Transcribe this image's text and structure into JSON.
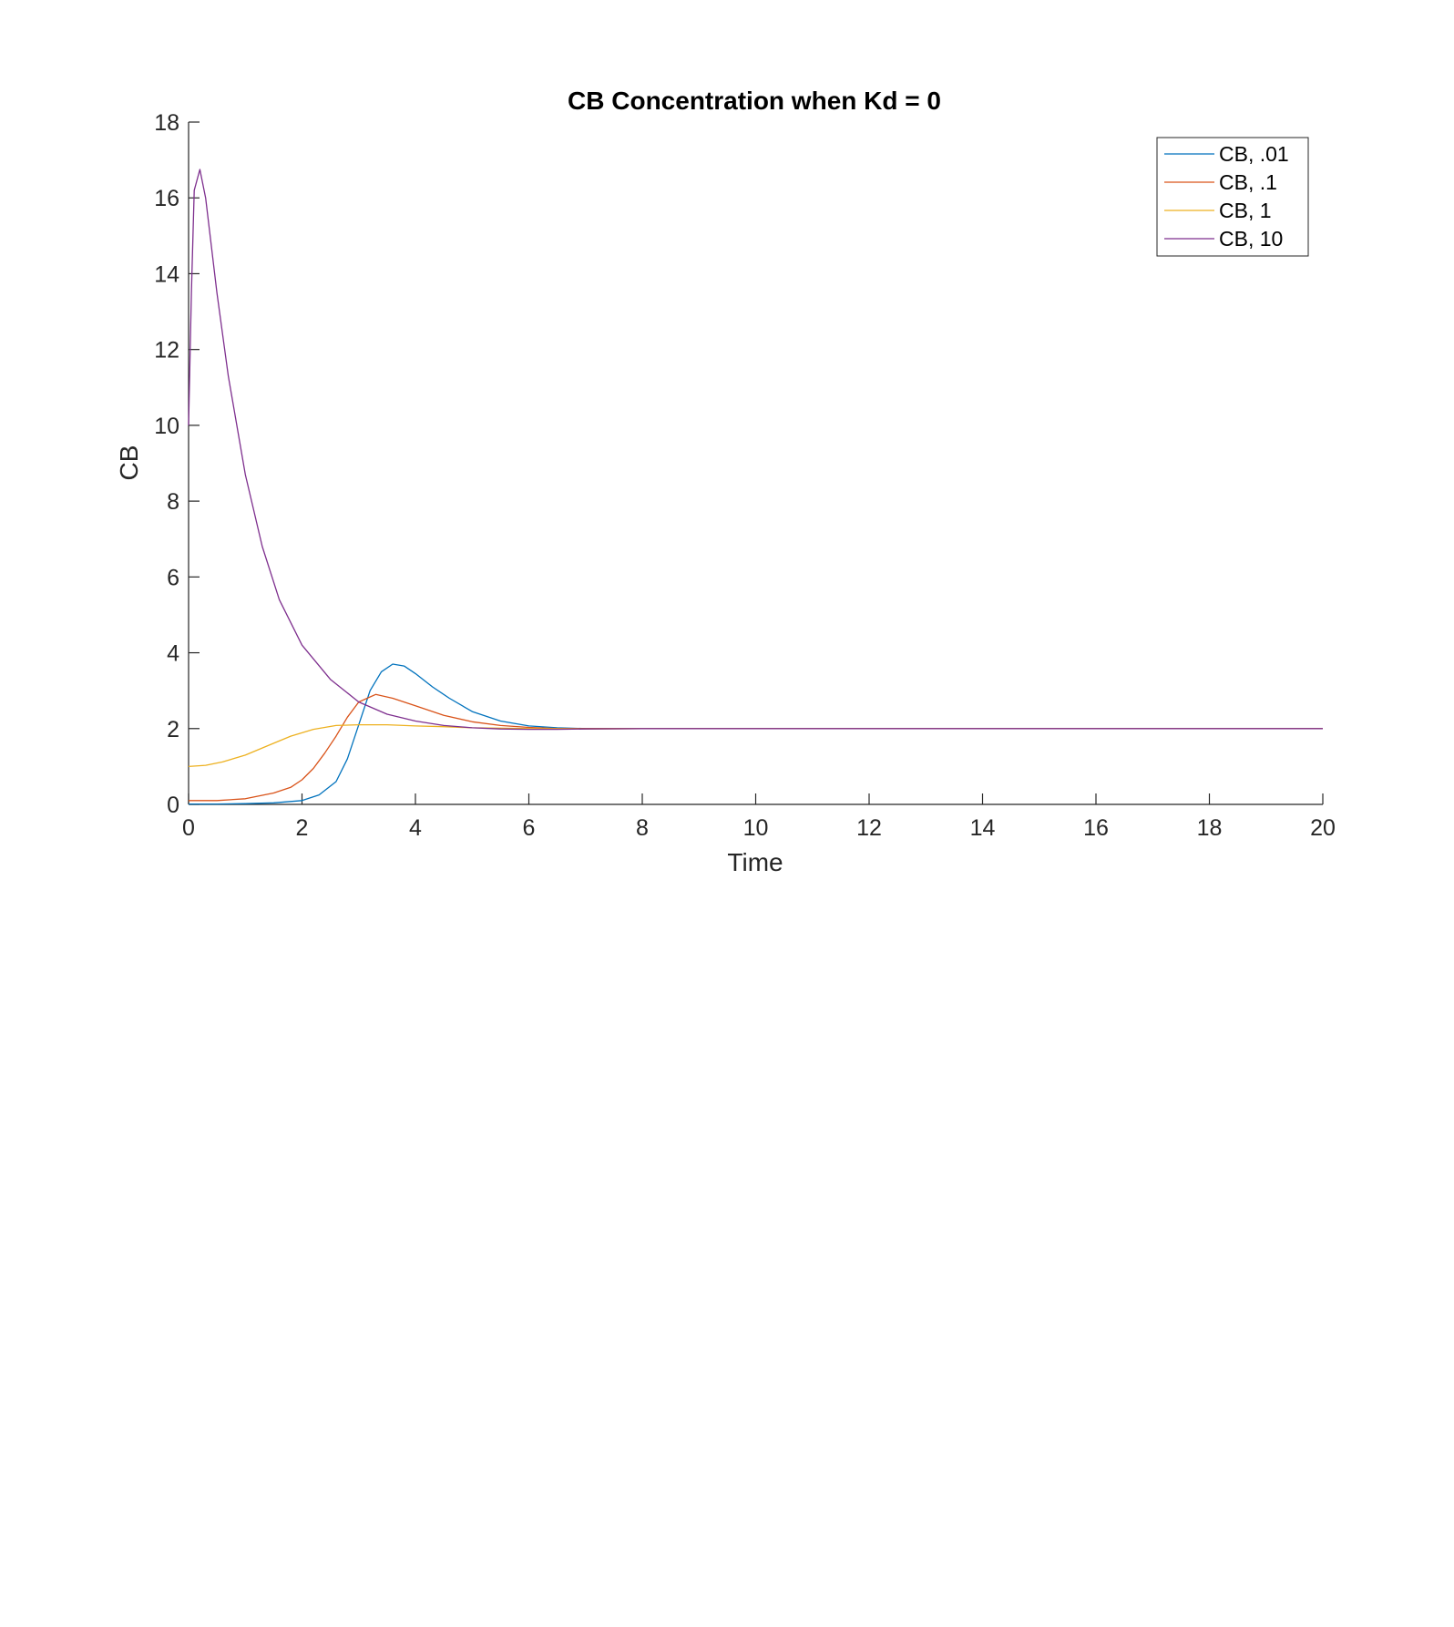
{
  "chart_data": {
    "type": "line",
    "title": "CB Concentration when Kd = 0",
    "xlabel": "Time",
    "ylabel": "CB",
    "xlim": [
      0,
      20
    ],
    "ylim": [
      0,
      18
    ],
    "xticks": [
      0,
      2,
      4,
      6,
      8,
      10,
      12,
      14,
      16,
      18,
      20
    ],
    "yticks": [
      0,
      2,
      4,
      6,
      8,
      10,
      12,
      14,
      16,
      18
    ],
    "grid": false,
    "legend_position": "top-right",
    "series": [
      {
        "name": "CB, .01",
        "color": "#0072BD",
        "x": [
          0,
          0.5,
          1,
          1.5,
          2,
          2.3,
          2.6,
          2.8,
          3.0,
          3.2,
          3.4,
          3.6,
          3.8,
          4.0,
          4.3,
          4.6,
          5.0,
          5.5,
          6.0,
          6.5,
          7.0,
          8.0,
          10.0,
          12.0,
          14.0,
          16.0,
          18.0,
          20.0
        ],
        "y": [
          0.01,
          0.01,
          0.02,
          0.04,
          0.1,
          0.25,
          0.6,
          1.2,
          2.1,
          3.0,
          3.5,
          3.7,
          3.65,
          3.45,
          3.1,
          2.8,
          2.45,
          2.2,
          2.07,
          2.02,
          2.0,
          2.0,
          2.0,
          2.0,
          2.0,
          2.0,
          2.0,
          2.0
        ]
      },
      {
        "name": "CB, .1",
        "color": "#D95319",
        "x": [
          0,
          0.5,
          1,
          1.5,
          1.8,
          2.0,
          2.2,
          2.4,
          2.6,
          2.8,
          3.0,
          3.3,
          3.6,
          4.0,
          4.5,
          5.0,
          5.5,
          6.0,
          6.5,
          7.0,
          8.0,
          10.0,
          12.0,
          14.0,
          16.0,
          18.0,
          20.0
        ],
        "y": [
          0.1,
          0.1,
          0.15,
          0.3,
          0.45,
          0.65,
          0.95,
          1.35,
          1.8,
          2.3,
          2.7,
          2.9,
          2.8,
          2.6,
          2.35,
          2.18,
          2.08,
          2.03,
          2.0,
          2.0,
          2.0,
          2.0,
          2.0,
          2.0,
          2.0,
          2.0,
          2.0
        ]
      },
      {
        "name": "CB, 1",
        "color": "#EDB120",
        "x": [
          0,
          0.3,
          0.6,
          1.0,
          1.4,
          1.8,
          2.2,
          2.6,
          3.0,
          3.5,
          4.0,
          4.5,
          5.0,
          6.0,
          7.0,
          8.0,
          10.0,
          12.0,
          14.0,
          16.0,
          18.0,
          20.0
        ],
        "y": [
          1.0,
          1.03,
          1.12,
          1.3,
          1.55,
          1.8,
          1.98,
          2.08,
          2.1,
          2.1,
          2.07,
          2.05,
          2.02,
          2.0,
          1.99,
          2.0,
          2.0,
          2.0,
          2.0,
          2.0,
          2.0,
          2.0
        ]
      },
      {
        "name": "CB, 10",
        "color": "#7E2F8E",
        "x": [
          0,
          0.05,
          0.1,
          0.2,
          0.3,
          0.5,
          0.7,
          1.0,
          1.3,
          1.6,
          2.0,
          2.5,
          3.0,
          3.5,
          4.0,
          4.5,
          5.0,
          5.5,
          6.0,
          6.5,
          7.0,
          8.0,
          9.0,
          10.0,
          12.0,
          14.0,
          16.0,
          18.0,
          20.0
        ],
        "y": [
          10.0,
          13.5,
          16.2,
          16.75,
          16.0,
          13.5,
          11.3,
          8.7,
          6.8,
          5.4,
          4.2,
          3.3,
          2.7,
          2.38,
          2.2,
          2.08,
          2.02,
          1.99,
          1.98,
          1.98,
          1.99,
          2.0,
          2.0,
          2.0,
          2.0,
          2.0,
          2.0,
          2.0,
          2.0
        ]
      }
    ]
  }
}
